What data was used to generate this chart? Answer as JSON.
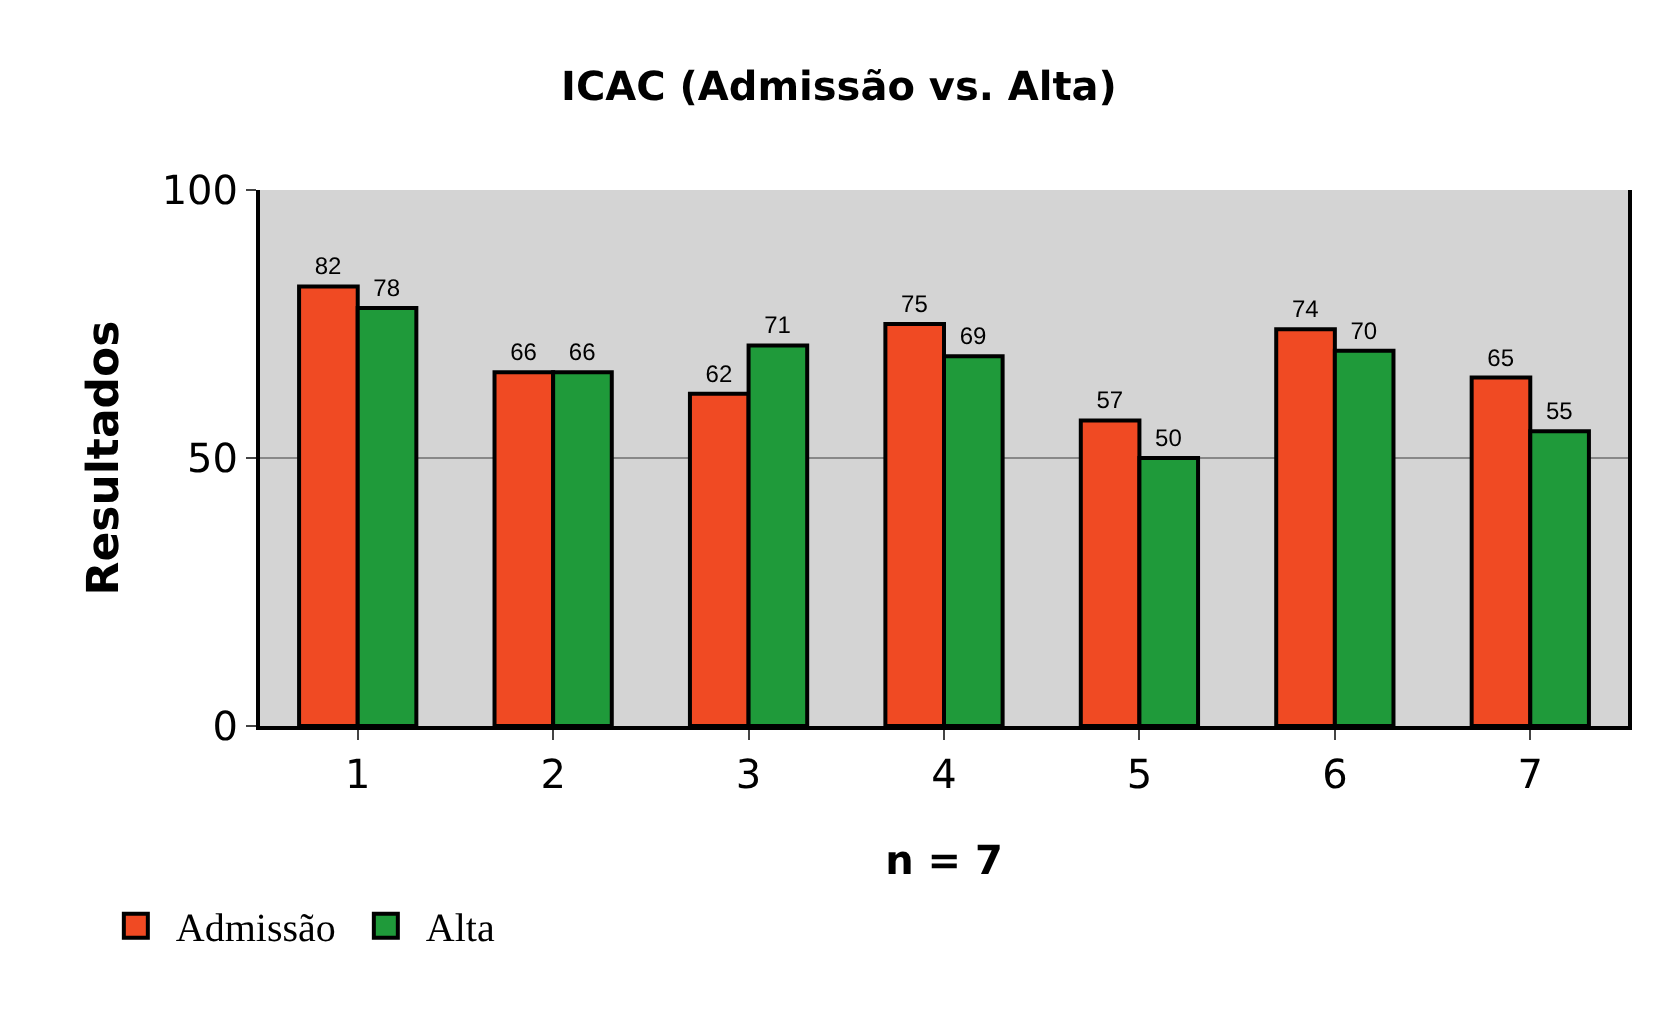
{
  "chart_data": {
    "type": "bar",
    "title": "ICAC (Admissão vs. Alta)",
    "xlabel": "n = 7",
    "ylabel": "Resultados",
    "categories": [
      "1",
      "2",
      "3",
      "4",
      "5",
      "6",
      "7"
    ],
    "series": [
      {
        "name": "Admissão",
        "color": "#f04a23",
        "values": [
          82,
          66,
          62,
          75,
          57,
          74,
          65
        ]
      },
      {
        "name": "Alta",
        "color": "#1f9a3a",
        "values": [
          78,
          66,
          71,
          69,
          50,
          70,
          55
        ]
      }
    ],
    "ylim": [
      0,
      100
    ],
    "yticks": [
      0,
      50,
      100
    ],
    "grid": "y",
    "legend": "bottom left",
    "data_labels": true
  }
}
